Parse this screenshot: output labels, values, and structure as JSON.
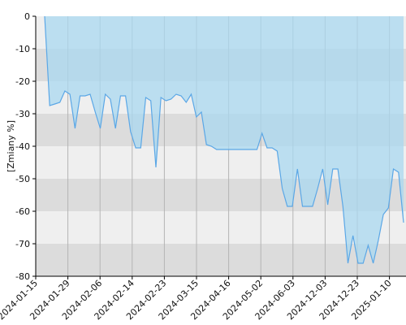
{
  "chart_data": {
    "type": "area",
    "title": "",
    "xlabel": "",
    "ylabel": "[Zmiany %]",
    "ylim": [
      -80,
      0
    ],
    "y_ticks": [
      0,
      -10,
      -20,
      -30,
      -40,
      -50,
      -60,
      -70,
      -80
    ],
    "x_tick_labels": [
      "2024-01-15",
      "2024-01-29",
      "2024-02-06",
      "2024-02-14",
      "2024-02-23",
      "2024-03-15",
      "2024-04-16",
      "2024-05-02",
      "2024-06-03",
      "2024-12-03",
      "2024-12-23",
      "2025-01-10"
    ],
    "grid": true,
    "legend": "none",
    "colors": {
      "line": "#5ba7e6",
      "fill": "#a9d8f0",
      "band_light": "#efefef",
      "band_dark": "#dcdcdc",
      "grid": "#b4b4b4"
    },
    "series": [
      {
        "values": [
          0,
          -27.5,
          -27,
          -26.5,
          -23,
          -24,
          -34.5,
          -24.5,
          -24.5,
          -24,
          -29.5,
          -34.5,
          -24,
          -25.5,
          -34.5,
          -24.5,
          -24.5,
          -35.5,
          -40.5,
          -40.5,
          -25,
          -26,
          -46.5,
          -25,
          -26,
          -25.5,
          -24,
          -24.5,
          -26.5,
          -24,
          -31,
          -29.5,
          -39.5,
          -40,
          -41,
          -41,
          -41,
          -41,
          -41,
          -41,
          -41,
          -41,
          -41,
          -36,
          -40.5,
          -40.5,
          -41.5,
          -53,
          -58.5,
          -58.5,
          -47,
          -58.5,
          -58.5,
          -58.5,
          -53,
          -47,
          -58,
          -47,
          -47,
          -58.5,
          -76,
          -67.5,
          -76,
          -76,
          -70.5,
          -76,
          -69,
          -61,
          -59,
          -47,
          -48,
          -63.5
        ]
      }
    ]
  }
}
